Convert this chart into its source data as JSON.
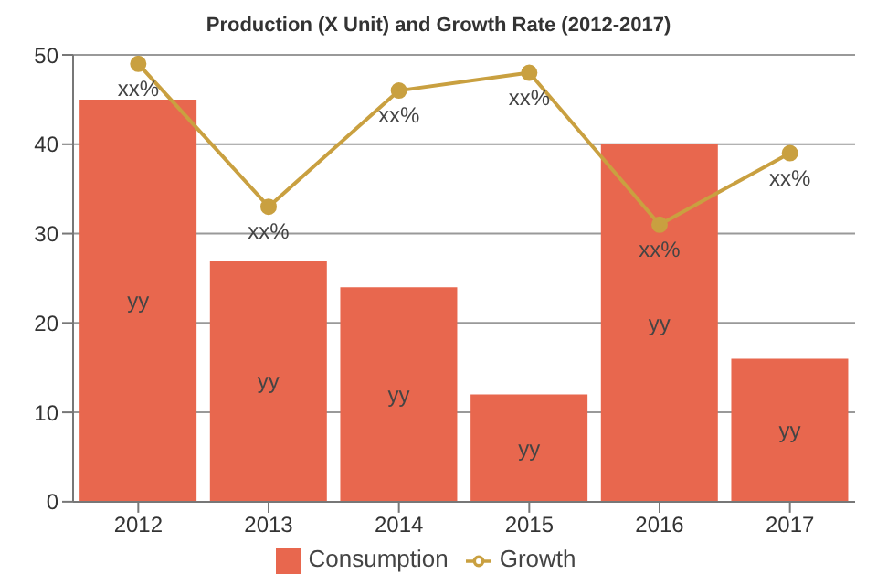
{
  "chart_data": {
    "type": "bar",
    "title": "Production (X Unit) and Growth Rate (2012-2017)",
    "categories": [
      "2012",
      "2013",
      "2014",
      "2015",
      "2016",
      "2017"
    ],
    "series": [
      {
        "name": "Consumption",
        "color": "#e8674e",
        "values": [
          45,
          27,
          24,
          12,
          40,
          16
        ],
        "value_labels": [
          "yy",
          "yy",
          "yy",
          "yy",
          "yy",
          "yy"
        ]
      },
      {
        "name": "Growth",
        "type": "line",
        "color": "#c9a040",
        "values": [
          49,
          33,
          46,
          48,
          31,
          39
        ],
        "value_labels": [
          "xx%",
          "xx%",
          "xx%",
          "xx%",
          "xx%",
          "xx%"
        ]
      }
    ],
    "ylim": [
      0,
      50
    ],
    "yticks": [
      0,
      10,
      20,
      30,
      40,
      50
    ],
    "grid": "y",
    "legend": "bottom",
    "marker": "circle",
    "line_style": "solid"
  }
}
